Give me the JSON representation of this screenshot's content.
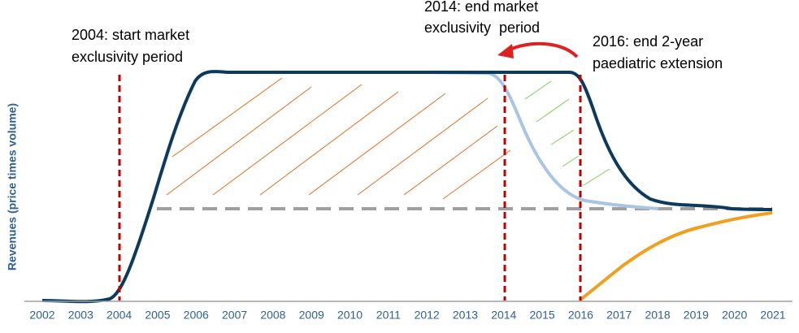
{
  "chart": {
    "y_label": "Revenues (price times volume)",
    "x_labels": [
      "2002",
      "2003",
      "2004",
      "2005",
      "2006",
      "2007",
      "2008",
      "2009",
      "2010",
      "2011",
      "2012",
      "2013",
      "2014",
      "2015",
      "2016",
      "2017",
      "2018",
      "2019",
      "2020",
      "2021"
    ],
    "annotations": [
      {
        "lines": [
          "2004: start market",
          "exclusivity period"
        ]
      },
      {
        "lines": [
          "2014: end market",
          "exclusivity  period"
        ]
      },
      {
        "lines": [
          "2016: end 2-year",
          "paediatric extension"
        ]
      }
    ]
  }
}
